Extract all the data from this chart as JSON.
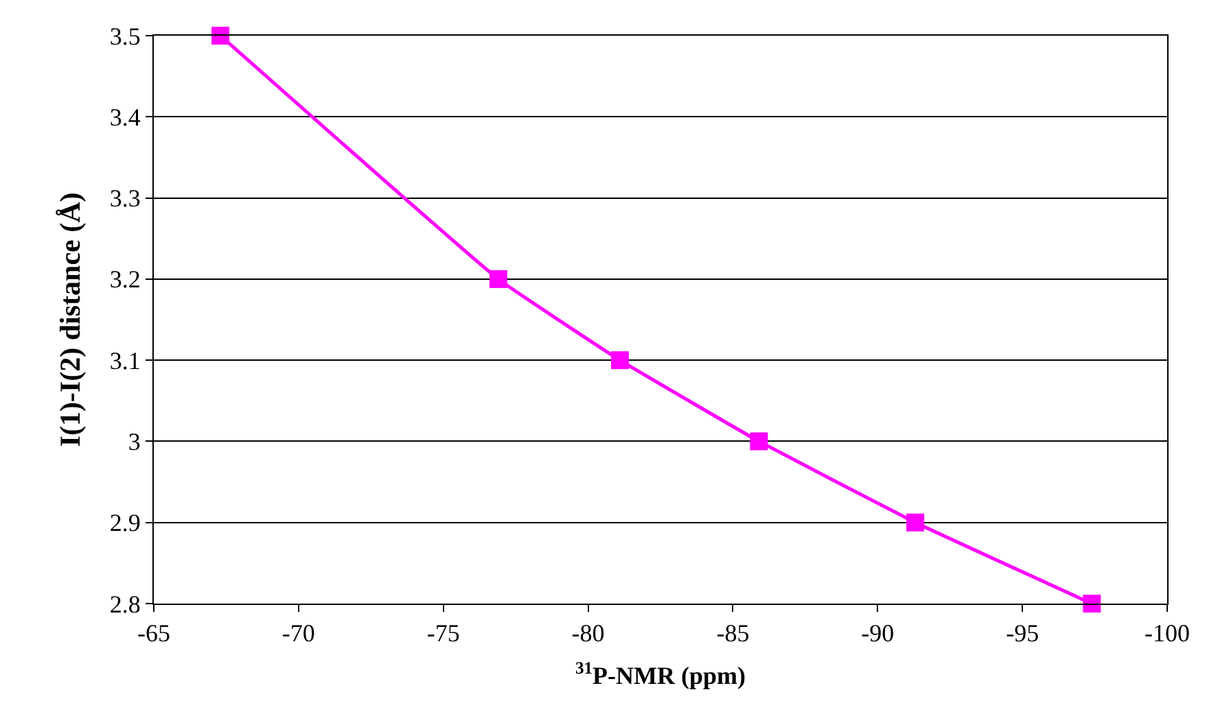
{
  "chart_data": {
    "type": "line",
    "xlabel": "$^{31}$P-NMR (ppm)",
    "ylabel": "I(1)-I(2) distance (Å)",
    "x": [
      -67.3,
      -76.9,
      -81.1,
      -85.9,
      -91.3,
      -97.4
    ],
    "series": [
      {
        "color": "#ff00ff",
        "values": [
          3.5,
          3.2,
          3.1,
          3.0,
          2.9,
          2.8
        ]
      }
    ],
    "xlim": [
      -65,
      -100
    ],
    "xticks": [
      -65,
      -70,
      -75,
      -80,
      -85,
      -90,
      -95,
      -100
    ],
    "ylim": [
      2.8,
      3.5
    ],
    "yticks": [
      2.8,
      2.9,
      3,
      3.1,
      3.2,
      3.3,
      3.4,
      3.5
    ],
    "grid": "y",
    "marker": "square",
    "line_style": "solid",
    "legend": false
  }
}
